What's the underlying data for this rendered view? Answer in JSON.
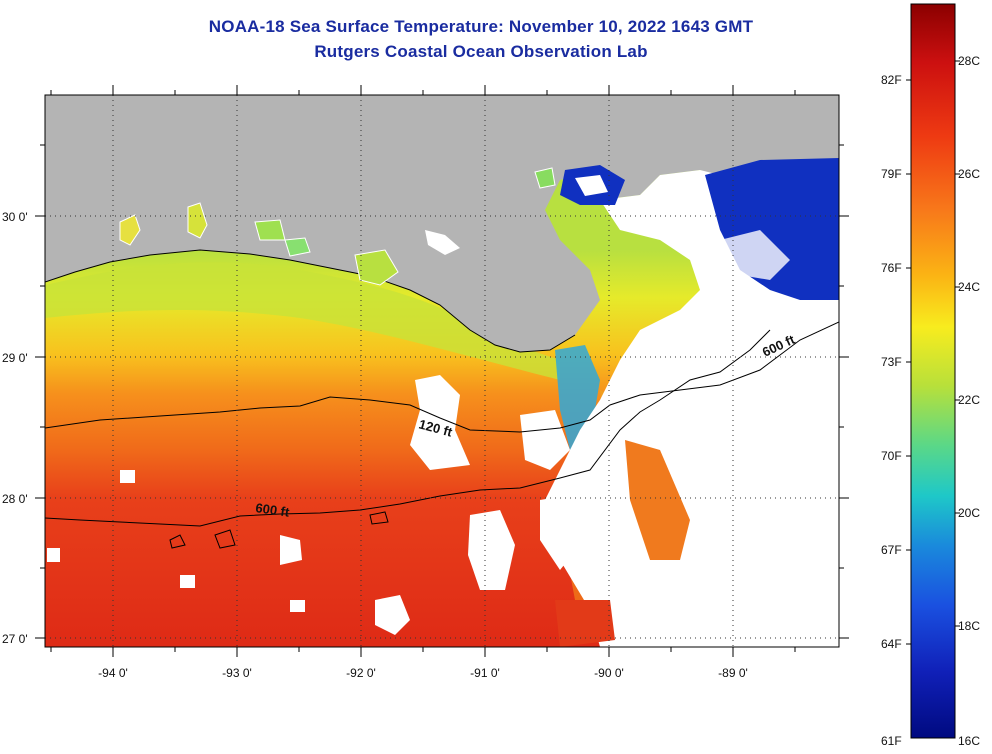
{
  "title": {
    "line1": "NOAA-18 Sea Surface Temperature:  November 10, 2022 1643 GMT",
    "line2": "Rutgers Coastal Ocean Observation Lab"
  },
  "map": {
    "lon_labels": [
      "-94 0'",
      "-93 0'",
      "-92 0'",
      "-91 0'",
      "-90 0'",
      "-89 0'"
    ],
    "lat_labels": [
      "30 0'",
      "29 0'",
      "28 0'",
      "27 0'"
    ],
    "contour_labels": [
      "120 ft",
      "600 ft",
      "600 ft"
    ],
    "colors": {
      "land": "#b4b4b4",
      "cloud": "#ffffff",
      "frame": "#000000"
    }
  },
  "colorbar": {
    "fahrenheit_labels": [
      "82F",
      "79F",
      "76F",
      "73F",
      "70F",
      "67F",
      "64F",
      "61F"
    ],
    "celsius_labels": [
      "28C",
      "26C",
      "24C",
      "22C",
      "20C",
      "18C",
      "16C"
    ],
    "gradient": [
      "#8b0000",
      "#cc1010",
      "#ee3a12",
      "#f8781a",
      "#fbb414",
      "#f8ec1e",
      "#b8e03a",
      "#5cd886",
      "#1ec8c8",
      "#1a88dc",
      "#1a50e0",
      "#1020b8",
      "#000a80"
    ]
  }
}
